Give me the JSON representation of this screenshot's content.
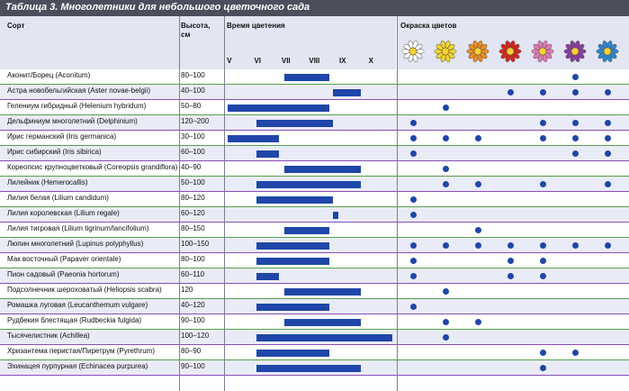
{
  "title": "Таблица 3. Многолетники для небольшого цветочного сада",
  "headers": {
    "variety": "Сорт",
    "height": "Высота, см",
    "bloom_time": "Время цветения",
    "flower_color": "Окраска цветов"
  },
  "months": [
    "V",
    "VI",
    "VII",
    "VIII",
    "IX",
    "X"
  ],
  "flower_icons": [
    {
      "name": "white-flower-icon",
      "color": "#ffffff"
    },
    {
      "name": "yellow-flower-icon",
      "color": "#f2d22a"
    },
    {
      "name": "orange-flower-icon",
      "color": "#ef8c1f"
    },
    {
      "name": "red-flower-icon",
      "color": "#d9231d"
    },
    {
      "name": "pink-flower-icon",
      "color": "#e07ab6"
    },
    {
      "name": "purple-flower-icon",
      "color": "#8a3b9e"
    },
    {
      "name": "blue-flower-icon",
      "color": "#2a86d0"
    }
  ],
  "colors": {
    "accent_blue": "#1f46a8",
    "header_bg": "#e3e6f2",
    "title_bg": "#4b4f5c"
  },
  "rows": [
    {
      "name": "Аконит/Борец (Aconitum)",
      "height": "80–100",
      "bloom": [
        7,
        8.6
      ],
      "flowers": [
        5
      ]
    },
    {
      "name": "Астра новобельгийская (Aster novae-belgii)",
      "height": "40–100",
      "bloom": [
        8.7,
        9.7
      ],
      "flowers": [
        3,
        4,
        5,
        6
      ]
    },
    {
      "name": "Гелениум гибридный (Helenium hybridum)",
      "height": "50–80",
      "bloom": [
        5,
        8.6
      ],
      "flowers": [
        1
      ]
    },
    {
      "name": "Дельфиниум многолетний (Delphinium)",
      "height": "120–200",
      "bloom": [
        6,
        8.7
      ],
      "flowers": [
        0,
        4,
        5,
        6
      ]
    },
    {
      "name": "Ирис германский (Iris germanica)",
      "height": "30–100",
      "bloom": [
        5,
        6.8
      ],
      "flowers": [
        0,
        1,
        2,
        4,
        5,
        6
      ]
    },
    {
      "name": "Ирис сибирский (Iris sibirica)",
      "height": "60–100",
      "bloom": [
        6,
        6.8
      ],
      "flowers": [
        0,
        5,
        6
      ]
    },
    {
      "name": "Кореопсис крупноцветковый (Coreopsis grandiflora)",
      "height": "40–90",
      "bloom": [
        7,
        9.7
      ],
      "flowers": [
        1
      ]
    },
    {
      "name": "Лилейник (Hemerocallis)",
      "height": "50–100",
      "bloom": [
        6,
        9.7
      ],
      "flowers": [
        1,
        2,
        4,
        6
      ]
    },
    {
      "name": "Лилия белая (Lilium candidum)",
      "height": "80–120",
      "bloom": [
        6,
        8.7
      ],
      "flowers": [
        0
      ]
    },
    {
      "name": "Лилия королевская (Lilium regale)",
      "height": "60–120",
      "bloom": [
        8.7,
        8.9
      ],
      "flowers": [
        0
      ]
    },
    {
      "name": "Лилия тигровая (Lilium tigrinum/lancifolium)",
      "height": "80–150",
      "bloom": [
        7,
        8.6
      ],
      "flowers": [
        2
      ]
    },
    {
      "name": "Люпин многолетний (Lupinus polyphyllus)",
      "height": "100–150",
      "bloom": [
        6,
        8.6
      ],
      "flowers": [
        0,
        1,
        2,
        3,
        4,
        5,
        6
      ]
    },
    {
      "name": "Мак восточный (Papaver orientale)",
      "height": "80–100",
      "bloom": [
        6,
        8.6
      ],
      "flowers": [
        0,
        3,
        4
      ]
    },
    {
      "name": "Пион садовый (Paeonia hortorum)",
      "height": "60–110",
      "bloom": [
        6,
        6.8
      ],
      "flowers": [
        0,
        3,
        4
      ]
    },
    {
      "name": "Подсолнечник шероховатый (Heliopsis scabra)",
      "height": "120",
      "bloom": [
        7,
        9.7
      ],
      "flowers": [
        1
      ]
    },
    {
      "name": "Ромашка луговая (Leucanthemum vulgare)",
      "height": "40–120",
      "bloom": [
        6,
        8.6
      ],
      "flowers": [
        0
      ]
    },
    {
      "name": "Рудбекия блестящая (Rudbeckia fulgida)",
      "height": "90–100",
      "bloom": [
        7,
        9.7
      ],
      "flowers": [
        1,
        2
      ]
    },
    {
      "name": "Тысячелистник (Achillea)",
      "height": "100–120",
      "bloom": [
        6,
        10.8
      ],
      "flowers": [
        1
      ]
    },
    {
      "name": "Хризантема перистая/Пиретрум (Pyrethrum)",
      "height": "80–90",
      "bloom": [
        6,
        8.6
      ],
      "flowers": [
        4,
        5
      ]
    },
    {
      "name": "Эхинацея пурпурная (Echinacea purpurea)",
      "height": "90–100",
      "bloom": [
        6,
        9.7
      ],
      "flowers": [
        4
      ]
    }
  ]
}
